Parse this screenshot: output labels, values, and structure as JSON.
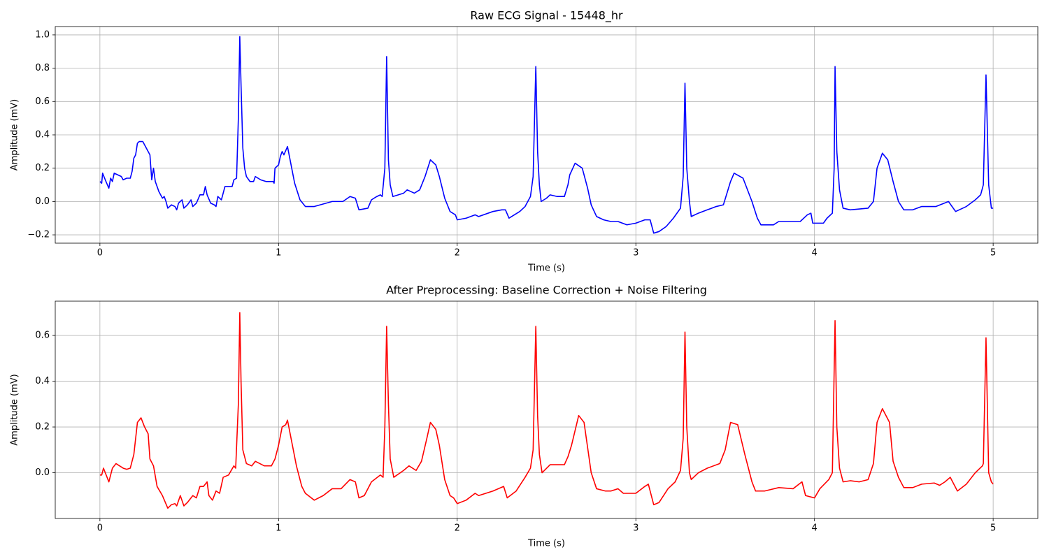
{
  "chart_data": [
    {
      "type": "line",
      "title": "Raw ECG Signal - 15448_hr",
      "xlabel": "Time (s)",
      "ylabel": "Amplitude (mV)",
      "color": "#0000ff",
      "grid": true,
      "xlim": [
        -0.25,
        5.25
      ],
      "ylim": [
        -0.25,
        1.05
      ],
      "xticks": [
        0,
        1,
        2,
        3,
        4,
        5
      ],
      "yticks": [
        {
          "value": -0.2,
          "label": "−0.2"
        },
        {
          "value": 0,
          "label": "0.0"
        },
        {
          "value": 0.2,
          "label": "0.2"
        },
        {
          "value": 0.4,
          "label": "0.4"
        },
        {
          "value": 0.6,
          "label": "0.6"
        },
        {
          "value": 0.8,
          "label": "0.8"
        },
        {
          "value": 1.0,
          "label": "1.0"
        }
      ],
      "x": [
        0,
        0.01,
        0.015,
        0.03,
        0.05,
        0.06,
        0.07,
        0.08,
        0.12,
        0.13,
        0.15,
        0.17,
        0.18,
        0.19,
        0.2,
        0.21,
        0.22,
        0.24,
        0.27,
        0.28,
        0.29,
        0.3,
        0.31,
        0.33,
        0.35,
        0.36,
        0.37,
        0.38,
        0.4,
        0.42,
        0.43,
        0.44,
        0.46,
        0.47,
        0.49,
        0.51,
        0.52,
        0.54,
        0.56,
        0.58,
        0.59,
        0.6,
        0.62,
        0.64,
        0.65,
        0.66,
        0.68,
        0.7,
        0.74,
        0.75,
        0.765,
        0.775,
        0.783,
        0.79,
        0.8,
        0.81,
        0.82,
        0.84,
        0.86,
        0.87,
        0.9,
        0.93,
        0.97,
        0.975,
        0.98,
        1.0,
        1.01,
        1.02,
        1.03,
        1.05,
        1.07,
        1.09,
        1.12,
        1.15,
        1.2,
        1.3,
        1.36,
        1.4,
        1.43,
        1.45,
        1.5,
        1.52,
        1.55,
        1.57,
        1.58,
        1.595,
        1.605,
        1.615,
        1.625,
        1.64,
        1.7,
        1.72,
        1.76,
        1.79,
        1.82,
        1.85,
        1.88,
        1.9,
        1.93,
        1.96,
        1.99,
        2.0,
        2.05,
        2.1,
        2.12,
        2.2,
        2.25,
        2.27,
        2.29,
        2.35,
        2.38,
        2.41,
        2.425,
        2.44,
        2.45,
        2.46,
        2.47,
        2.5,
        2.52,
        2.56,
        2.6,
        2.62,
        2.63,
        2.66,
        2.7,
        2.73,
        2.75,
        2.78,
        2.82,
        2.86,
        2.9,
        2.95,
        3.0,
        3.05,
        3.08,
        3.1,
        3.13,
        3.17,
        3.21,
        3.25,
        3.265,
        3.275,
        3.285,
        3.3,
        3.31,
        3.35,
        3.4,
        3.45,
        3.49,
        3.51,
        3.53,
        3.55,
        3.6,
        3.65,
        3.68,
        3.7,
        3.77,
        3.8,
        3.92,
        3.96,
        3.98,
        3.99,
        4.05,
        4.07,
        4.1,
        4.11,
        4.115,
        4.125,
        4.14,
        4.16,
        4.2,
        4.3,
        4.33,
        4.35,
        4.38,
        4.41,
        4.44,
        4.47,
        4.5,
        4.55,
        4.6,
        4.68,
        4.75,
        4.79,
        4.85,
        4.9,
        4.93,
        4.945,
        4.96,
        4.975,
        4.99,
        5.0
      ],
      "values": [
        0.12,
        0.11,
        0.17,
        0.13,
        0.08,
        0.14,
        0.12,
        0.17,
        0.15,
        0.13,
        0.14,
        0.14,
        0.18,
        0.26,
        0.28,
        0.35,
        0.36,
        0.36,
        0.3,
        0.28,
        0.13,
        0.2,
        0.12,
        0.06,
        0.02,
        0.03,
        0.0,
        -0.04,
        -0.02,
        -0.03,
        -0.05,
        -0.01,
        0.01,
        -0.04,
        -0.02,
        0.01,
        -0.03,
        -0.01,
        0.04,
        0.04,
        0.09,
        0.04,
        -0.01,
        -0.02,
        -0.03,
        0.03,
        0.01,
        0.09,
        0.09,
        0.13,
        0.14,
        0.5,
        0.99,
        0.7,
        0.32,
        0.2,
        0.15,
        0.12,
        0.12,
        0.15,
        0.13,
        0.12,
        0.12,
        0.11,
        0.2,
        0.22,
        0.27,
        0.3,
        0.28,
        0.33,
        0.22,
        0.11,
        0.01,
        -0.03,
        -0.03,
        0.0,
        0.0,
        0.03,
        0.02,
        -0.05,
        -0.04,
        0.01,
        0.03,
        0.04,
        0.03,
        0.2,
        0.87,
        0.25,
        0.1,
        0.03,
        0.05,
        0.07,
        0.05,
        0.07,
        0.15,
        0.25,
        0.22,
        0.15,
        0.02,
        -0.06,
        -0.08,
        -0.11,
        -0.1,
        -0.08,
        -0.09,
        -0.06,
        -0.05,
        -0.05,
        -0.1,
        -0.06,
        -0.03,
        0.03,
        0.15,
        0.81,
        0.3,
        0.1,
        0.0,
        0.02,
        0.04,
        0.03,
        0.03,
        0.1,
        0.16,
        0.23,
        0.2,
        0.08,
        -0.02,
        -0.09,
        -0.11,
        -0.12,
        -0.12,
        -0.14,
        -0.13,
        -0.11,
        -0.11,
        -0.19,
        -0.18,
        -0.15,
        -0.1,
        -0.04,
        0.15,
        0.71,
        0.2,
        0.0,
        -0.09,
        -0.07,
        -0.05,
        -0.03,
        -0.02,
        0.05,
        0.12,
        0.17,
        0.14,
        0.0,
        -0.1,
        -0.14,
        -0.14,
        -0.12,
        -0.12,
        -0.08,
        -0.07,
        -0.13,
        -0.13,
        -0.1,
        -0.07,
        0.2,
        0.81,
        0.3,
        0.07,
        -0.04,
        -0.05,
        -0.04,
        0.0,
        0.2,
        0.29,
        0.25,
        0.12,
        0.0,
        -0.05,
        -0.05,
        -0.03,
        -0.03,
        0.0,
        -0.06,
        -0.03,
        0.01,
        0.04,
        0.1,
        0.76,
        0.1,
        -0.04,
        -0.04
      ]
    },
    {
      "type": "line",
      "title": "After Preprocessing: Baseline Correction + Noise Filtering",
      "xlabel": "Time (s)",
      "ylabel": "Amplitude (mV)",
      "color": "#ff0000",
      "grid": true,
      "xlim": [
        -0.25,
        5.25
      ],
      "ylim": [
        -0.2,
        0.75
      ],
      "xticks": [
        0,
        1,
        2,
        3,
        4,
        5
      ],
      "yticks": [
        {
          "value": 0,
          "label": "0.0"
        },
        {
          "value": 0.2,
          "label": "0.2"
        },
        {
          "value": 0.4,
          "label": "0.4"
        },
        {
          "value": 0.6,
          "label": "0.6"
        }
      ],
      "x": [
        0,
        0.01,
        0.02,
        0.04,
        0.05,
        0.07,
        0.09,
        0.13,
        0.15,
        0.17,
        0.19,
        0.21,
        0.23,
        0.25,
        0.27,
        0.28,
        0.3,
        0.32,
        0.35,
        0.38,
        0.4,
        0.42,
        0.43,
        0.45,
        0.47,
        0.49,
        0.52,
        0.54,
        0.56,
        0.58,
        0.6,
        0.61,
        0.63,
        0.65,
        0.67,
        0.69,
        0.72,
        0.75,
        0.76,
        0.775,
        0.783,
        0.79,
        0.8,
        0.82,
        0.85,
        0.87,
        0.92,
        0.96,
        0.98,
        1.0,
        1.02,
        1.04,
        1.05,
        1.07,
        1.1,
        1.13,
        1.15,
        1.2,
        1.25,
        1.3,
        1.35,
        1.4,
        1.43,
        1.45,
        1.48,
        1.52,
        1.57,
        1.585,
        1.595,
        1.605,
        1.615,
        1.625,
        1.645,
        1.7,
        1.73,
        1.77,
        1.8,
        1.83,
        1.85,
        1.88,
        1.9,
        1.93,
        1.96,
        1.98,
        2.0,
        2.05,
        2.1,
        2.12,
        2.2,
        2.26,
        2.28,
        2.33,
        2.38,
        2.41,
        2.425,
        2.44,
        2.45,
        2.46,
        2.475,
        2.52,
        2.6,
        2.62,
        2.64,
        2.68,
        2.71,
        2.75,
        2.78,
        2.83,
        2.86,
        2.9,
        2.93,
        3.0,
        3.05,
        3.07,
        3.1,
        3.13,
        3.18,
        3.22,
        3.25,
        3.265,
        3.275,
        3.285,
        3.3,
        3.31,
        3.35,
        3.4,
        3.47,
        3.5,
        3.53,
        3.57,
        3.61,
        3.65,
        3.67,
        3.72,
        3.8,
        3.88,
        3.93,
        3.95,
        4.0,
        4.03,
        4.08,
        4.1,
        4.115,
        4.125,
        4.14,
        4.16,
        4.2,
        4.25,
        4.3,
        4.33,
        4.35,
        4.38,
        4.42,
        4.44,
        4.47,
        4.5,
        4.55,
        4.6,
        4.67,
        4.7,
        4.73,
        4.76,
        4.8,
        4.85,
        4.9,
        4.94,
        4.945,
        4.96,
        4.975,
        4.99,
        5.0
      ],
      "values": [
        -0.01,
        -0.01,
        0.02,
        -0.02,
        -0.04,
        0.02,
        0.04,
        0.02,
        0.015,
        0.02,
        0.08,
        0.22,
        0.24,
        0.2,
        0.17,
        0.06,
        0.03,
        -0.06,
        -0.1,
        -0.155,
        -0.14,
        -0.135,
        -0.145,
        -0.1,
        -0.145,
        -0.13,
        -0.1,
        -0.11,
        -0.06,
        -0.06,
        -0.04,
        -0.1,
        -0.12,
        -0.08,
        -0.09,
        -0.02,
        -0.01,
        0.03,
        0.02,
        0.3,
        0.7,
        0.4,
        0.1,
        0.04,
        0.03,
        0.05,
        0.03,
        0.03,
        0.06,
        0.12,
        0.2,
        0.21,
        0.23,
        0.15,
        0.03,
        -0.06,
        -0.09,
        -0.12,
        -0.1,
        -0.07,
        -0.07,
        -0.03,
        -0.04,
        -0.11,
        -0.1,
        -0.04,
        -0.01,
        -0.02,
        0.2,
        0.64,
        0.3,
        0.06,
        -0.02,
        0.01,
        0.03,
        0.01,
        0.05,
        0.15,
        0.22,
        0.19,
        0.12,
        -0.03,
        -0.1,
        -0.11,
        -0.135,
        -0.12,
        -0.09,
        -0.1,
        -0.08,
        -0.06,
        -0.11,
        -0.08,
        -0.02,
        0.02,
        0.1,
        0.64,
        0.25,
        0.08,
        0.0,
        0.035,
        0.035,
        0.07,
        0.12,
        0.25,
        0.22,
        0.0,
        -0.07,
        -0.08,
        -0.08,
        -0.07,
        -0.09,
        -0.09,
        -0.06,
        -0.05,
        -0.14,
        -0.13,
        -0.07,
        -0.04,
        0.01,
        0.15,
        0.615,
        0.2,
        0.0,
        -0.03,
        0.0,
        0.02,
        0.04,
        0.1,
        0.22,
        0.21,
        0.08,
        -0.04,
        -0.08,
        -0.08,
        -0.065,
        -0.07,
        -0.04,
        -0.1,
        -0.11,
        -0.07,
        -0.03,
        0.0,
        0.665,
        0.2,
        0.02,
        -0.04,
        -0.035,
        -0.04,
        -0.03,
        0.04,
        0.22,
        0.28,
        0.22,
        0.05,
        -0.02,
        -0.065,
        -0.065,
        -0.05,
        -0.045,
        -0.055,
        -0.04,
        -0.02,
        -0.08,
        -0.05,
        0.0,
        0.03,
        0.04,
        0.59,
        0.0,
        -0.04,
        -0.05
      ]
    }
  ]
}
